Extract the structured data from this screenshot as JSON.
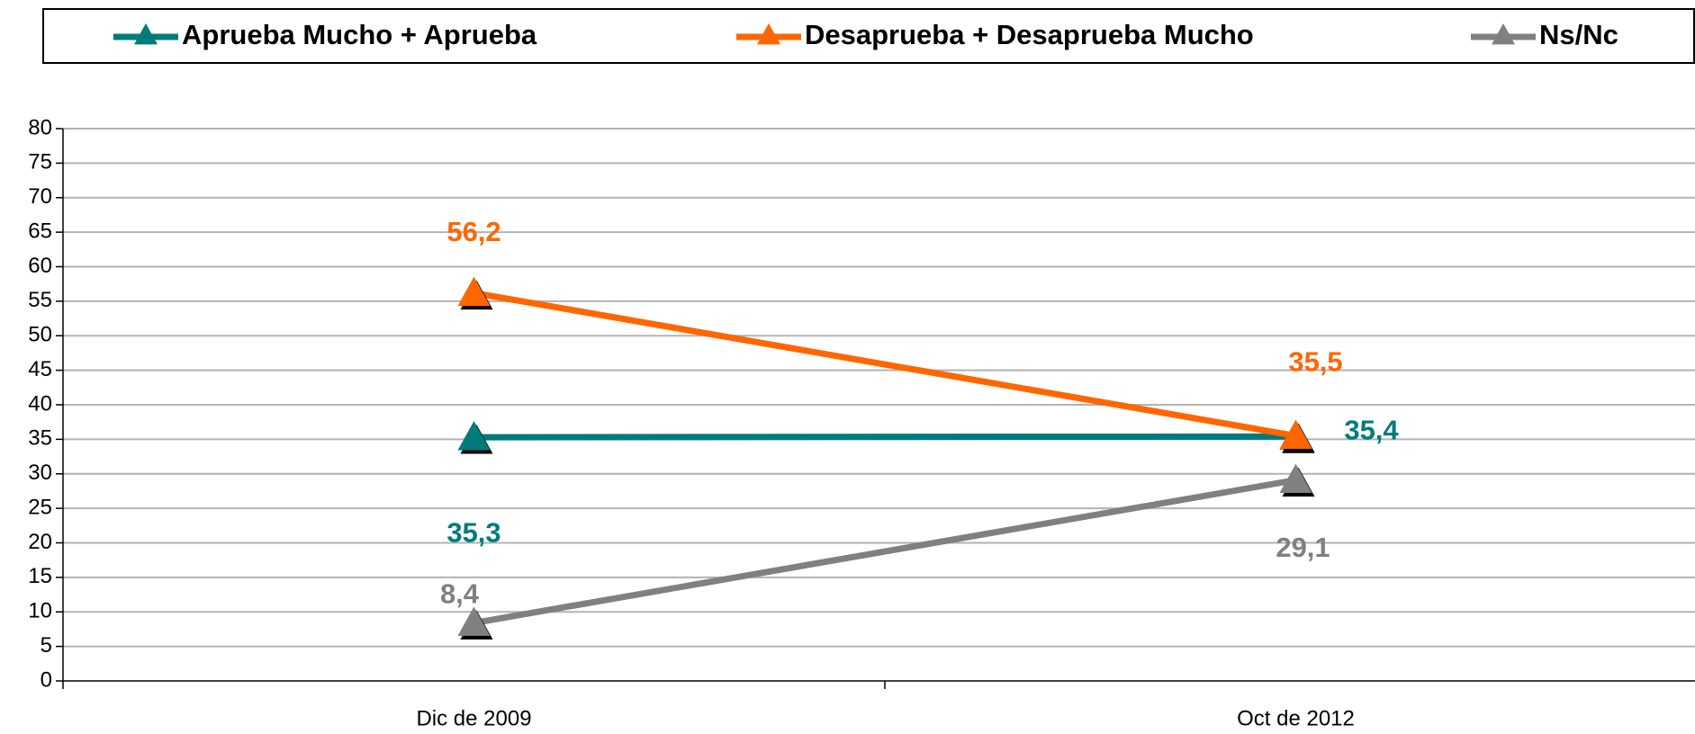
{
  "chart_data": {
    "type": "line",
    "categories": [
      "Dic de 2009",
      "Oct de 2012"
    ],
    "series": [
      {
        "name": "Aprueba Mucho + Aprueba",
        "color": "#007b7b",
        "values": [
          35.3,
          35.4
        ],
        "value_labels": [
          "35,3",
          "35,4"
        ]
      },
      {
        "name": "Desaprueba + Desaprueba Mucho",
        "color": "#ff6600",
        "values": [
          56.2,
          35.5
        ],
        "value_labels": [
          "56,2",
          "35,5"
        ]
      },
      {
        "name": "Ns/Nc",
        "color": "#808080",
        "values": [
          8.4,
          29.1
        ],
        "value_labels": [
          "8,4",
          "29,1"
        ]
      }
    ],
    "ylim": [
      0,
      80
    ],
    "yticks": [
      0,
      5,
      10,
      15,
      20,
      25,
      30,
      35,
      40,
      45,
      50,
      55,
      60,
      65,
      70,
      75,
      80
    ],
    "grid": true,
    "legend": "top"
  }
}
